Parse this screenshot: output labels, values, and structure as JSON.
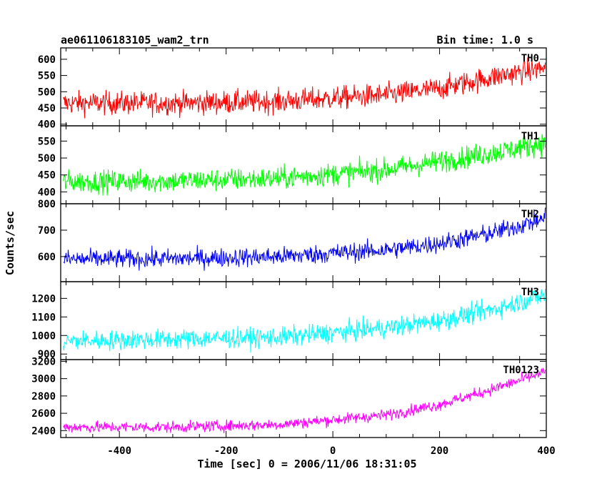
{
  "header": {
    "left_title": "ae061106183105_wam2_trn",
    "right_title": "Bin time: 1.0 s"
  },
  "axes": {
    "ylabel": "Counts/sec",
    "xlabel": "Time [sec] 0 = 2006/11/06 18:31:05"
  },
  "chart_data": {
    "type": "line",
    "x_range": [
      -510,
      400
    ],
    "x_ticks": [
      -400,
      -200,
      0,
      200,
      400
    ],
    "bin_time_s": 1.0,
    "panels": [
      {
        "name": "TH0",
        "color": "#ff0000",
        "ylim": [
          395,
          635
        ],
        "yticks": [
          400,
          450,
          500,
          550,
          600
        ],
        "trend": [
          [
            -505,
            465
          ],
          [
            -300,
            465
          ],
          [
            -100,
            470
          ],
          [
            100,
            490
          ],
          [
            200,
            510
          ],
          [
            300,
            545
          ],
          [
            400,
            575
          ]
        ],
        "noise": 30
      },
      {
        "name": "TH1",
        "color": "#00ff00",
        "ylim": [
          365,
          595
        ],
        "yticks": [
          400,
          450,
          500,
          550
        ],
        "trend": [
          [
            -505,
            430
          ],
          [
            -300,
            432
          ],
          [
            -100,
            440
          ],
          [
            100,
            465
          ],
          [
            200,
            490
          ],
          [
            300,
            515
          ],
          [
            400,
            545
          ]
        ],
        "noise": 28
      },
      {
        "name": "TH2",
        "color": "#0000ff",
        "ylim": [
          505,
          800
        ],
        "yticks": [
          600,
          700,
          800
        ],
        "trend": [
          [
            -505,
            590
          ],
          [
            -300,
            592
          ],
          [
            -100,
            600
          ],
          [
            100,
            625
          ],
          [
            200,
            650
          ],
          [
            300,
            690
          ],
          [
            400,
            745
          ]
        ],
        "noise": 30
      },
      {
        "name": "TH3",
        "color": "#00ffff",
        "ylim": [
          870,
          1290
        ],
        "yticks": [
          900,
          1000,
          1100,
          1200
        ],
        "trend": [
          [
            -505,
            970
          ],
          [
            -300,
            980
          ],
          [
            -100,
            990
          ],
          [
            100,
            1040
          ],
          [
            200,
            1080
          ],
          [
            300,
            1140
          ],
          [
            400,
            1220
          ]
        ],
        "noise": 45
      },
      {
        "name": "TH0123",
        "color": "#ff00ff",
        "ylim": [
          2320,
          3220
        ],
        "yticks": [
          2400,
          2600,
          2800,
          3000,
          3200
        ],
        "trend": [
          [
            -505,
            2440
          ],
          [
            -300,
            2440
          ],
          [
            -100,
            2470
          ],
          [
            100,
            2580
          ],
          [
            200,
            2700
          ],
          [
            300,
            2880
          ],
          [
            400,
            3080
          ]
        ],
        "noise": 55
      }
    ]
  }
}
